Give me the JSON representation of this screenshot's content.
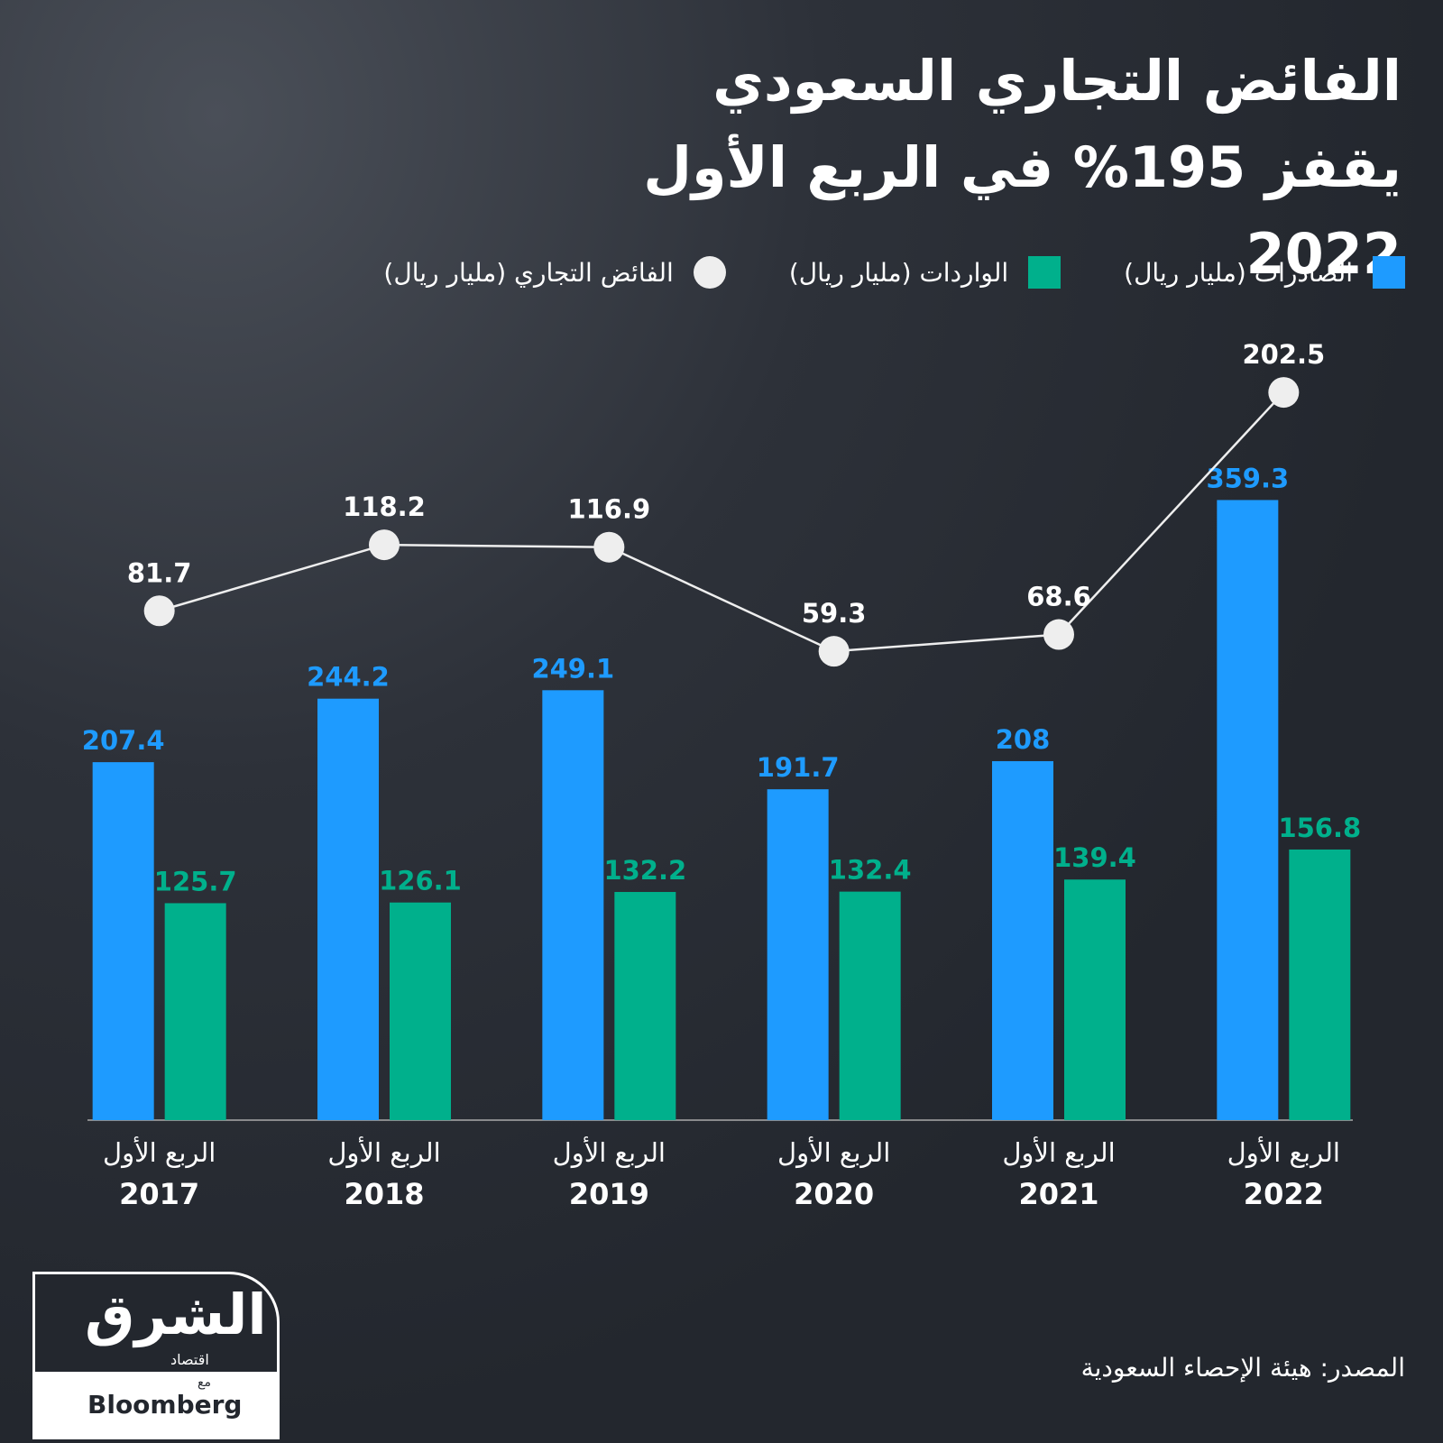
{
  "chart_data": {
    "type": "bar",
    "title": "الفائض التجاري السعودي يقفز 195% في الربع الأول 2022",
    "categories": [
      [
        "الربع الأول",
        "2017"
      ],
      [
        "الربع الأول",
        "2018"
      ],
      [
        "الربع الأول",
        "2019"
      ],
      [
        "الربع الأول",
        "2020"
      ],
      [
        "الربع الأول",
        "2021"
      ],
      [
        "الربع الأول",
        "2022"
      ]
    ],
    "series": [
      {
        "name": "الصادرات (مليار ريال)",
        "type": "bar",
        "color": "#1e9bff",
        "values": [
          207.4,
          244.2,
          249.1,
          191.7,
          208,
          359.3
        ]
      },
      {
        "name": "الواردات (مليار ريال)",
        "type": "bar",
        "color": "#00b08c",
        "values": [
          125.7,
          126.1,
          132.2,
          132.4,
          139.4,
          156.8
        ]
      },
      {
        "name": "الفائض التجاري (مليار ريال)",
        "type": "line",
        "axis": "y2",
        "color": "#eeeeee",
        "values": [
          81.7,
          118.2,
          116.9,
          59.3,
          68.6,
          202.5
        ]
      }
    ],
    "ylim": [
      0,
      440
    ],
    "y2lim": [
      -200,
      220
    ],
    "grid": false,
    "source": "المصدر: هيئة الإحصاء السعودية"
  },
  "logo": {
    "brand": "الشرق",
    "sub": "اقتصاد",
    "with": "مع",
    "partner": "Bloomberg"
  }
}
